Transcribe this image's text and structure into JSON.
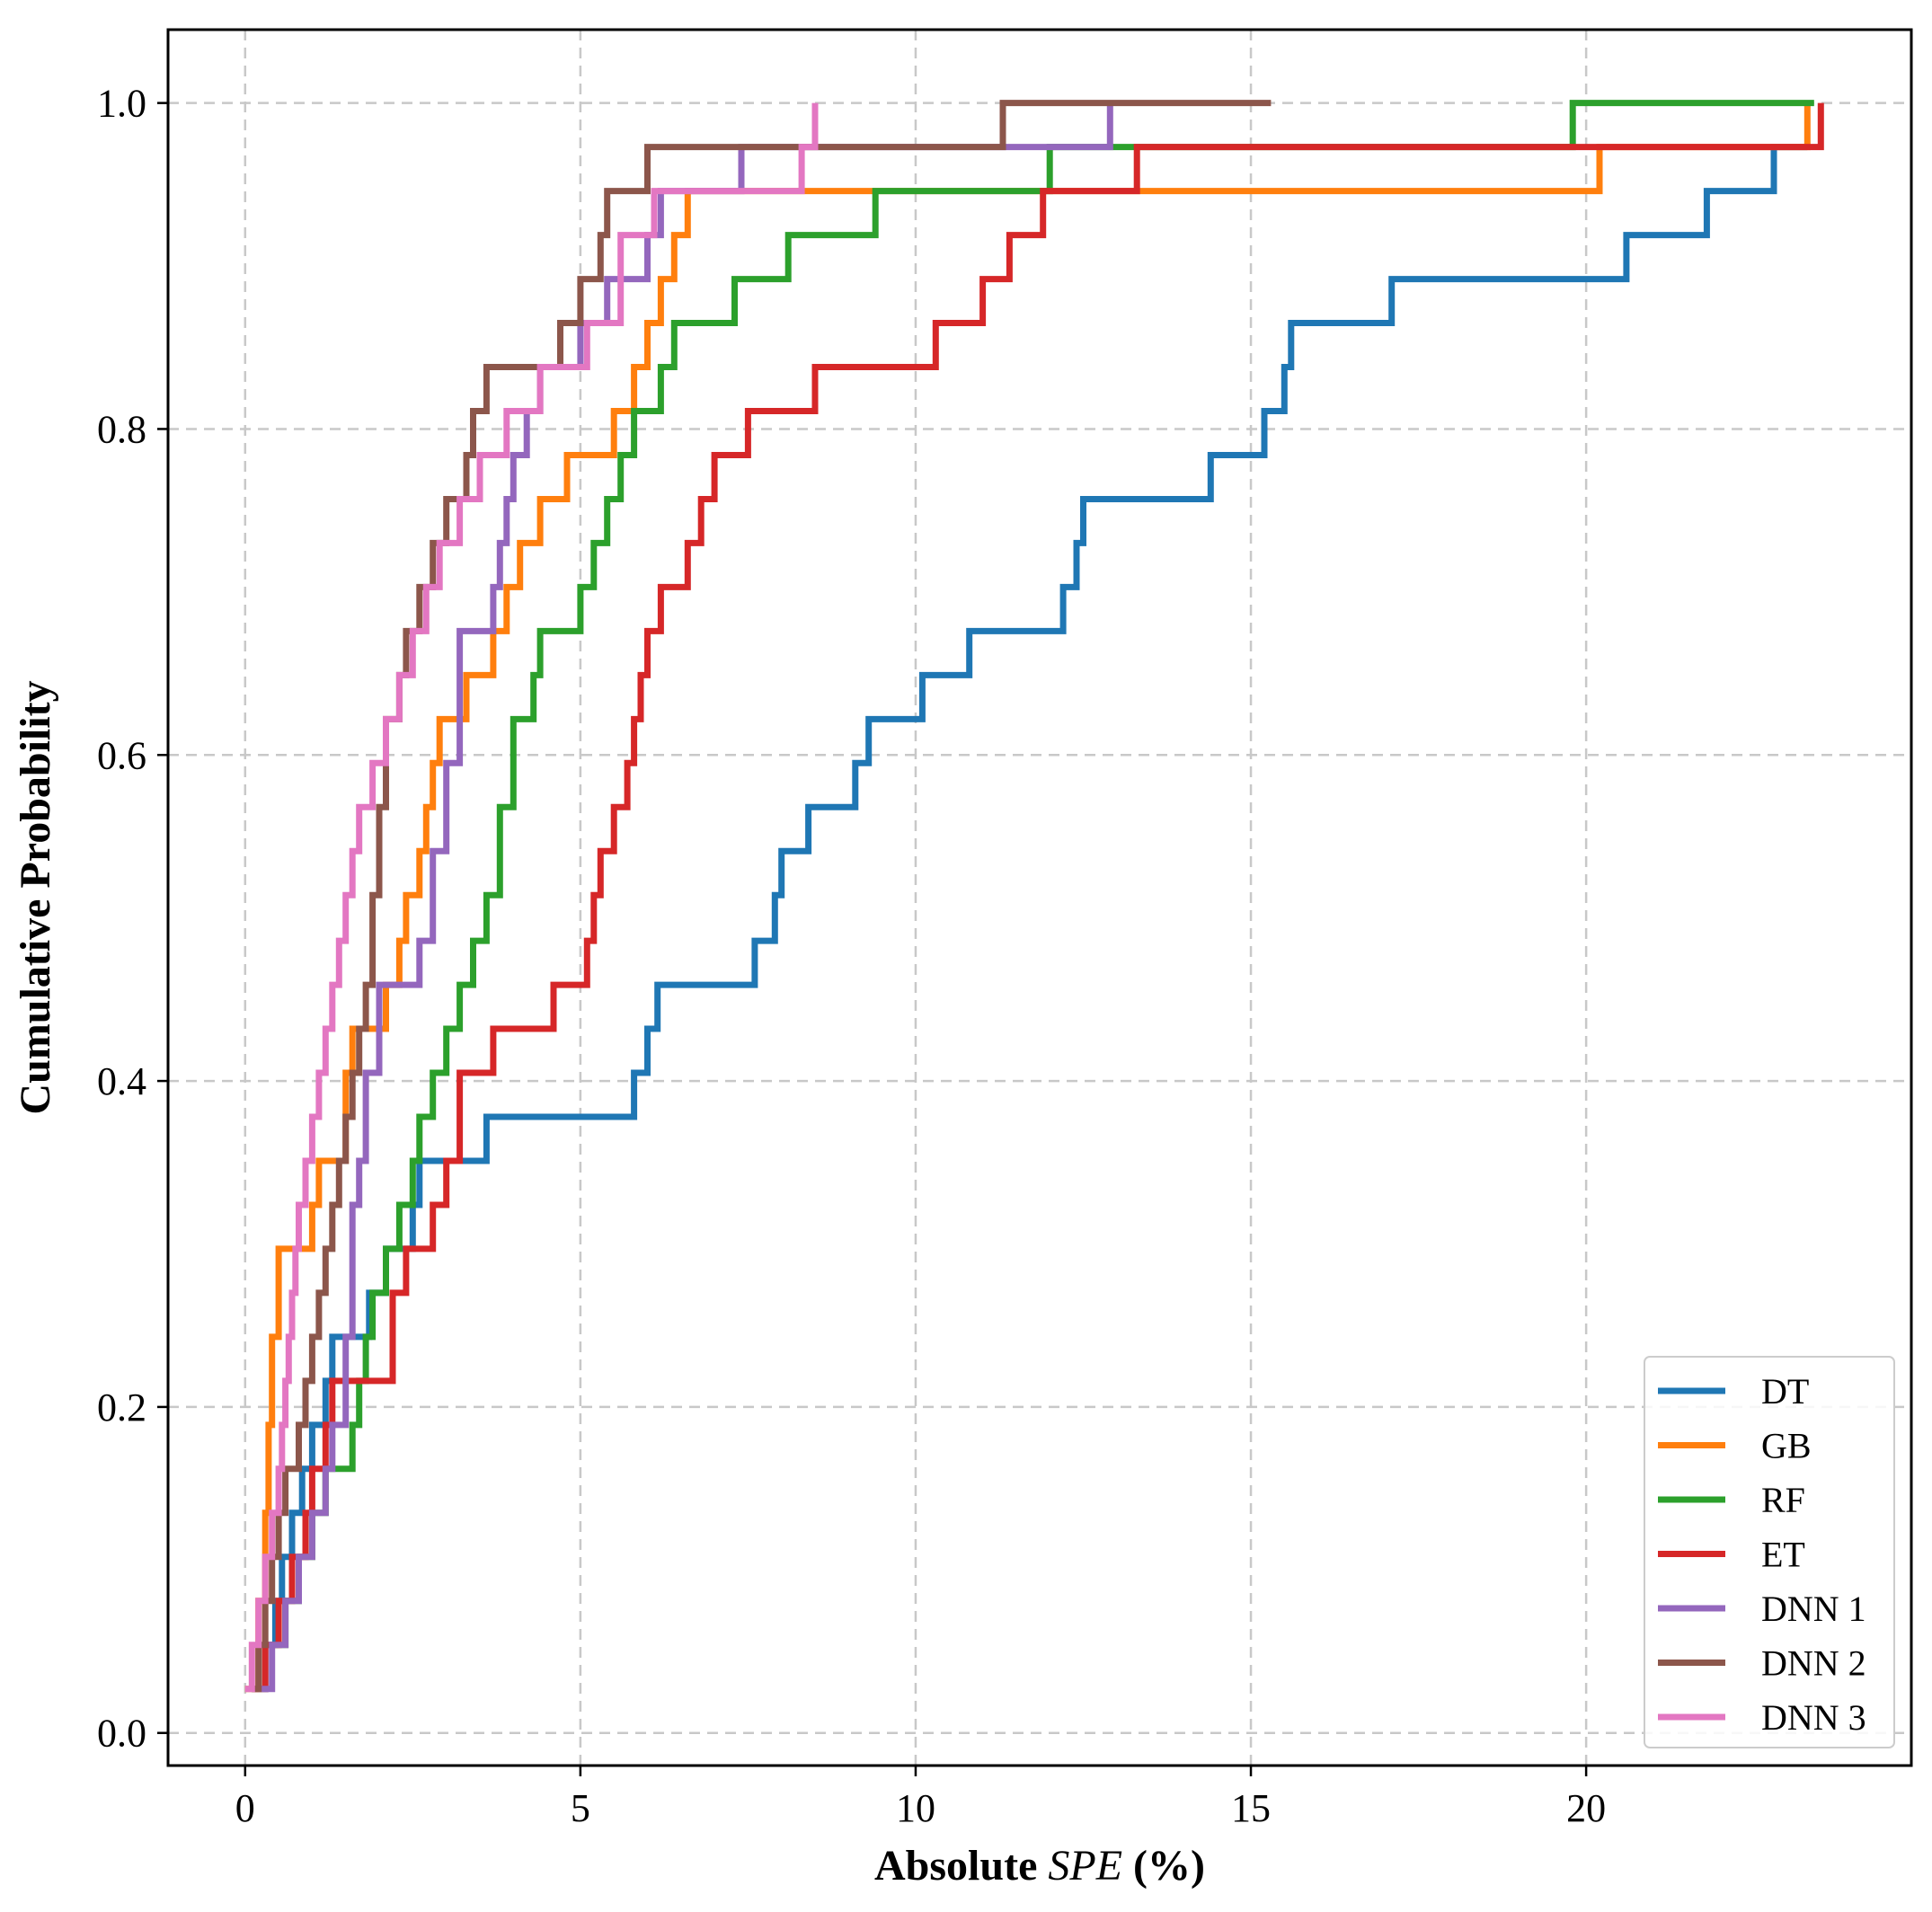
{
  "chart_data": {
    "type": "line",
    "step": true,
    "xlabel_prefix": "Absolute ",
    "xlabel_italic": "SPE",
    "xlabel_suffix": " (%)",
    "ylabel": "Cumulative Probability",
    "xlim": [
      -1.15,
      24.85
    ],
    "ylim": [
      -0.02,
      1.045
    ],
    "xticks": [
      0,
      5,
      10,
      15,
      20
    ],
    "xtick_labels": [
      "0",
      "5",
      "10",
      "15",
      "20"
    ],
    "yticks": [
      0.0,
      0.2,
      0.4,
      0.6,
      0.8,
      1.0
    ],
    "ytick_labels": [
      "0.0",
      "0.2",
      "0.4",
      "0.6",
      "0.8",
      "1.0"
    ],
    "grid": true,
    "legend_position": "lower-right",
    "series": [
      {
        "name": "DT",
        "color": "#1f77b4",
        "x": [
          0.1,
          0.3,
          0.45,
          0.55,
          0.7,
          0.85,
          1.0,
          1.2,
          1.3,
          1.5,
          1.65,
          1.85,
          2.0,
          2.1,
          2.2,
          2.5,
          2.6,
          2.75,
          2.9,
          3.3,
          3.6,
          5.8,
          6.0,
          6.15,
          6.3,
          7.6,
          7.9,
          8.0,
          8.1,
          8.4,
          8.9,
          9.1,
          9.3,
          10.1,
          10.8,
          12.2,
          12.4,
          12.5,
          12.6,
          14.4,
          15.2,
          15.5,
          15.6,
          15.7,
          17.1,
          20.6,
          21.8,
          22.8,
          23.3
        ],
        "y": [
          0.027,
          0.054,
          0.081,
          0.108,
          0.135,
          0.162,
          0.189,
          0.216,
          0.243,
          0.243,
          0.243,
          0.27,
          0.27,
          0.297,
          0.297,
          0.324,
          0.351,
          0.351,
          0.351,
          0.351,
          0.378,
          0.405,
          0.432,
          0.459,
          0.459,
          0.486,
          0.514,
          0.541,
          0.541,
          0.568,
          0.568,
          0.595,
          0.622,
          0.649,
          0.676,
          0.703,
          0.73,
          0.757,
          0.757,
          0.784,
          0.811,
          0.838,
          0.865,
          0.865,
          0.892,
          0.919,
          0.946,
          0.973,
          0.973
        ]
      },
      {
        "name": "GB",
        "color": "#ff7f0e",
        "x": [
          0.0,
          0.2,
          0.3,
          0.35,
          0.4,
          0.5,
          1.0,
          1.1,
          1.5,
          1.6,
          2.1,
          2.3,
          2.4,
          2.6,
          2.7,
          2.8,
          2.9,
          3.1,
          3.3,
          3.7,
          3.9,
          4.1,
          4.4,
          4.8,
          5.5,
          5.8,
          6.0,
          6.2,
          6.4,
          6.6,
          7.2,
          8.9,
          20.2,
          23.3
        ],
        "y": [
          0.027,
          0.081,
          0.135,
          0.189,
          0.243,
          0.297,
          0.324,
          0.351,
          0.405,
          0.432,
          0.459,
          0.486,
          0.514,
          0.541,
          0.568,
          0.595,
          0.622,
          0.622,
          0.649,
          0.676,
          0.703,
          0.73,
          0.757,
          0.784,
          0.811,
          0.838,
          0.865,
          0.892,
          0.919,
          0.946,
          0.946,
          0.946,
          0.973,
          1.0
        ]
      },
      {
        "name": "RF",
        "color": "#2ca02c",
        "x": [
          0.4,
          0.6,
          0.8,
          1.0,
          1.2,
          1.6,
          1.7,
          1.8,
          1.9,
          2.1,
          2.3,
          2.5,
          2.6,
          2.8,
          3.0,
          3.2,
          3.4,
          3.6,
          3.8,
          4.0,
          4.3,
          4.4,
          4.6,
          5.0,
          5.2,
          5.4,
          5.6,
          5.8,
          6.2,
          6.4,
          6.6,
          7.3,
          8.1,
          9.4,
          12.0,
          19.8,
          23.4
        ],
        "y": [
          0.054,
          0.081,
          0.108,
          0.135,
          0.162,
          0.189,
          0.216,
          0.243,
          0.27,
          0.297,
          0.324,
          0.351,
          0.378,
          0.405,
          0.432,
          0.459,
          0.486,
          0.514,
          0.568,
          0.622,
          0.649,
          0.676,
          0.676,
          0.703,
          0.73,
          0.757,
          0.784,
          0.811,
          0.838,
          0.865,
          0.865,
          0.892,
          0.919,
          0.946,
          0.973,
          1.0,
          1.0
        ]
      },
      {
        "name": "ET",
        "color": "#d62728",
        "x": [
          0.1,
          0.3,
          0.5,
          0.7,
          0.9,
          1.0,
          1.2,
          1.3,
          2.2,
          2.4,
          2.8,
          3.0,
          3.2,
          3.7,
          4.6,
          5.1,
          5.2,
          5.3,
          5.5,
          5.7,
          5.8,
          5.9,
          6.0,
          6.1,
          6.2,
          6.6,
          6.8,
          7.0,
          7.2,
          7.5,
          8.5,
          10.3,
          11.0,
          11.4,
          11.9,
          13.3,
          23.5
        ],
        "y": [
          0.027,
          0.054,
          0.081,
          0.108,
          0.135,
          0.162,
          0.189,
          0.216,
          0.27,
          0.297,
          0.324,
          0.351,
          0.405,
          0.432,
          0.459,
          0.486,
          0.514,
          0.541,
          0.568,
          0.595,
          0.622,
          0.649,
          0.676,
          0.676,
          0.703,
          0.73,
          0.757,
          0.784,
          0.784,
          0.811,
          0.838,
          0.865,
          0.892,
          0.919,
          0.946,
          0.973,
          1.0
        ]
      },
      {
        "name": "DNN 1",
        "color": "#9467bd",
        "x": [
          0.2,
          0.4,
          0.6,
          0.8,
          1.0,
          1.2,
          1.3,
          1.5,
          1.6,
          1.7,
          1.8,
          2.0,
          2.6,
          2.8,
          3.0,
          3.2,
          3.7,
          3.8,
          3.9,
          4.0,
          4.2,
          4.4,
          4.6,
          5.0,
          5.4,
          5.7,
          6.0,
          6.2,
          6.9,
          7.4,
          8.8,
          12.9
        ],
        "y": [
          0.027,
          0.054,
          0.081,
          0.108,
          0.135,
          0.162,
          0.189,
          0.243,
          0.324,
          0.351,
          0.405,
          0.459,
          0.486,
          0.541,
          0.595,
          0.676,
          0.703,
          0.73,
          0.757,
          0.784,
          0.811,
          0.838,
          0.838,
          0.865,
          0.892,
          0.892,
          0.919,
          0.946,
          0.946,
          0.973,
          0.973,
          1.0
        ]
      },
      {
        "name": "DNN 2",
        "color": "#8c564b",
        "x": [
          0.1,
          0.2,
          0.3,
          0.4,
          0.5,
          0.6,
          0.8,
          0.9,
          1.0,
          1.1,
          1.2,
          1.3,
          1.4,
          1.5,
          1.6,
          1.7,
          1.8,
          1.9,
          2.0,
          2.1,
          2.3,
          2.4,
          2.6,
          2.8,
          3.0,
          3.3,
          3.4,
          3.6,
          4.0,
          4.7,
          5.0,
          5.3,
          5.4,
          5.5,
          6.0,
          8.2,
          11.3,
          15.3
        ],
        "y": [
          0.027,
          0.054,
          0.081,
          0.108,
          0.135,
          0.162,
          0.189,
          0.216,
          0.243,
          0.27,
          0.297,
          0.324,
          0.351,
          0.378,
          0.405,
          0.432,
          0.459,
          0.514,
          0.568,
          0.622,
          0.649,
          0.676,
          0.703,
          0.73,
          0.757,
          0.784,
          0.811,
          0.838,
          0.838,
          0.865,
          0.892,
          0.919,
          0.946,
          0.946,
          0.973,
          0.973,
          1.0,
          1.0
        ]
      },
      {
        "name": "DNN 3",
        "color": "#e377c2",
        "x": [
          0.0,
          0.1,
          0.2,
          0.3,
          0.4,
          0.5,
          0.55,
          0.6,
          0.65,
          0.7,
          0.75,
          0.8,
          0.9,
          1.0,
          1.1,
          1.2,
          1.3,
          1.4,
          1.5,
          1.6,
          1.7,
          1.9,
          2.1,
          2.3,
          2.5,
          2.7,
          2.9,
          3.2,
          3.5,
          3.9,
          4.4,
          5.1,
          5.6,
          6.1,
          8.3,
          8.5
        ],
        "y": [
          0.027,
          0.054,
          0.081,
          0.108,
          0.135,
          0.162,
          0.189,
          0.216,
          0.243,
          0.27,
          0.297,
          0.324,
          0.351,
          0.378,
          0.405,
          0.432,
          0.459,
          0.486,
          0.514,
          0.541,
          0.568,
          0.595,
          0.622,
          0.649,
          0.676,
          0.703,
          0.73,
          0.757,
          0.784,
          0.811,
          0.838,
          0.865,
          0.919,
          0.946,
          0.973,
          1.0
        ]
      }
    ]
  }
}
